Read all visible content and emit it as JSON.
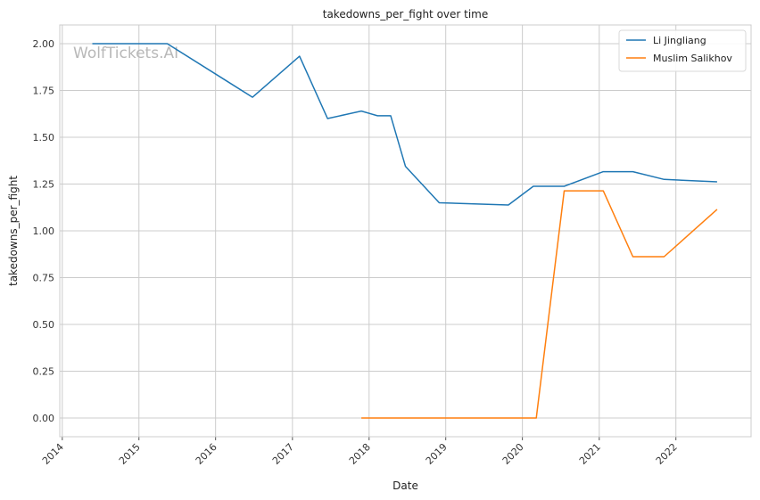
{
  "chart_data": {
    "type": "line",
    "title": "takedowns_per_fight over time",
    "xlabel": "Date",
    "ylabel": "takedowns_per_fight",
    "watermark": "WolfTickets.AI",
    "x_ticks": [
      "2014",
      "2015",
      "2016",
      "2017",
      "2018",
      "2019",
      "2020",
      "2021",
      "2022"
    ],
    "y_ticks": [
      "0.00",
      "0.25",
      "0.50",
      "0.75",
      "1.00",
      "1.25",
      "1.50",
      "1.75",
      "2.00"
    ],
    "xlim": [
      "2013-12-20",
      "2022-12-25"
    ],
    "ylim": [
      -0.1,
      2.1
    ],
    "grid": true,
    "legend_position": "top-right",
    "series": [
      {
        "name": "Li Jingliang",
        "color": "#1f77b4",
        "points": [
          {
            "x": "2014-05-24",
            "y": 2.0
          },
          {
            "x": "2015-05-16",
            "y": 2.0
          },
          {
            "x": "2016-06-25",
            "y": 1.714
          },
          {
            "x": "2017-02-04",
            "y": 1.933
          },
          {
            "x": "2017-06-17",
            "y": 1.6
          },
          {
            "x": "2017-11-25",
            "y": 1.64
          },
          {
            "x": "2018-02-10",
            "y": 1.615
          },
          {
            "x": "2018-04-14",
            "y": 1.615
          },
          {
            "x": "2018-06-23",
            "y": 1.345
          },
          {
            "x": "2018-12-01",
            "y": 1.15
          },
          {
            "x": "2019-10-26",
            "y": 1.138
          },
          {
            "x": "2020-02-22",
            "y": 1.238
          },
          {
            "x": "2020-07-18",
            "y": 1.238
          },
          {
            "x": "2021-01-20",
            "y": 1.316
          },
          {
            "x": "2021-06-10",
            "y": 1.316
          },
          {
            "x": "2021-11-06",
            "y": 1.275
          },
          {
            "x": "2022-07-16",
            "y": 1.262
          }
        ]
      },
      {
        "name": "Muslim Salikhov",
        "color": "#ff7f0e",
        "points": [
          {
            "x": "2017-11-25",
            "y": 0.0
          },
          {
            "x": "2020-03-07",
            "y": 0.0
          },
          {
            "x": "2020-07-18",
            "y": 1.214
          },
          {
            "x": "2021-01-20",
            "y": 1.214
          },
          {
            "x": "2021-06-10",
            "y": 0.862
          },
          {
            "x": "2021-11-06",
            "y": 0.862
          },
          {
            "x": "2022-07-16",
            "y": 1.115
          }
        ]
      }
    ]
  }
}
